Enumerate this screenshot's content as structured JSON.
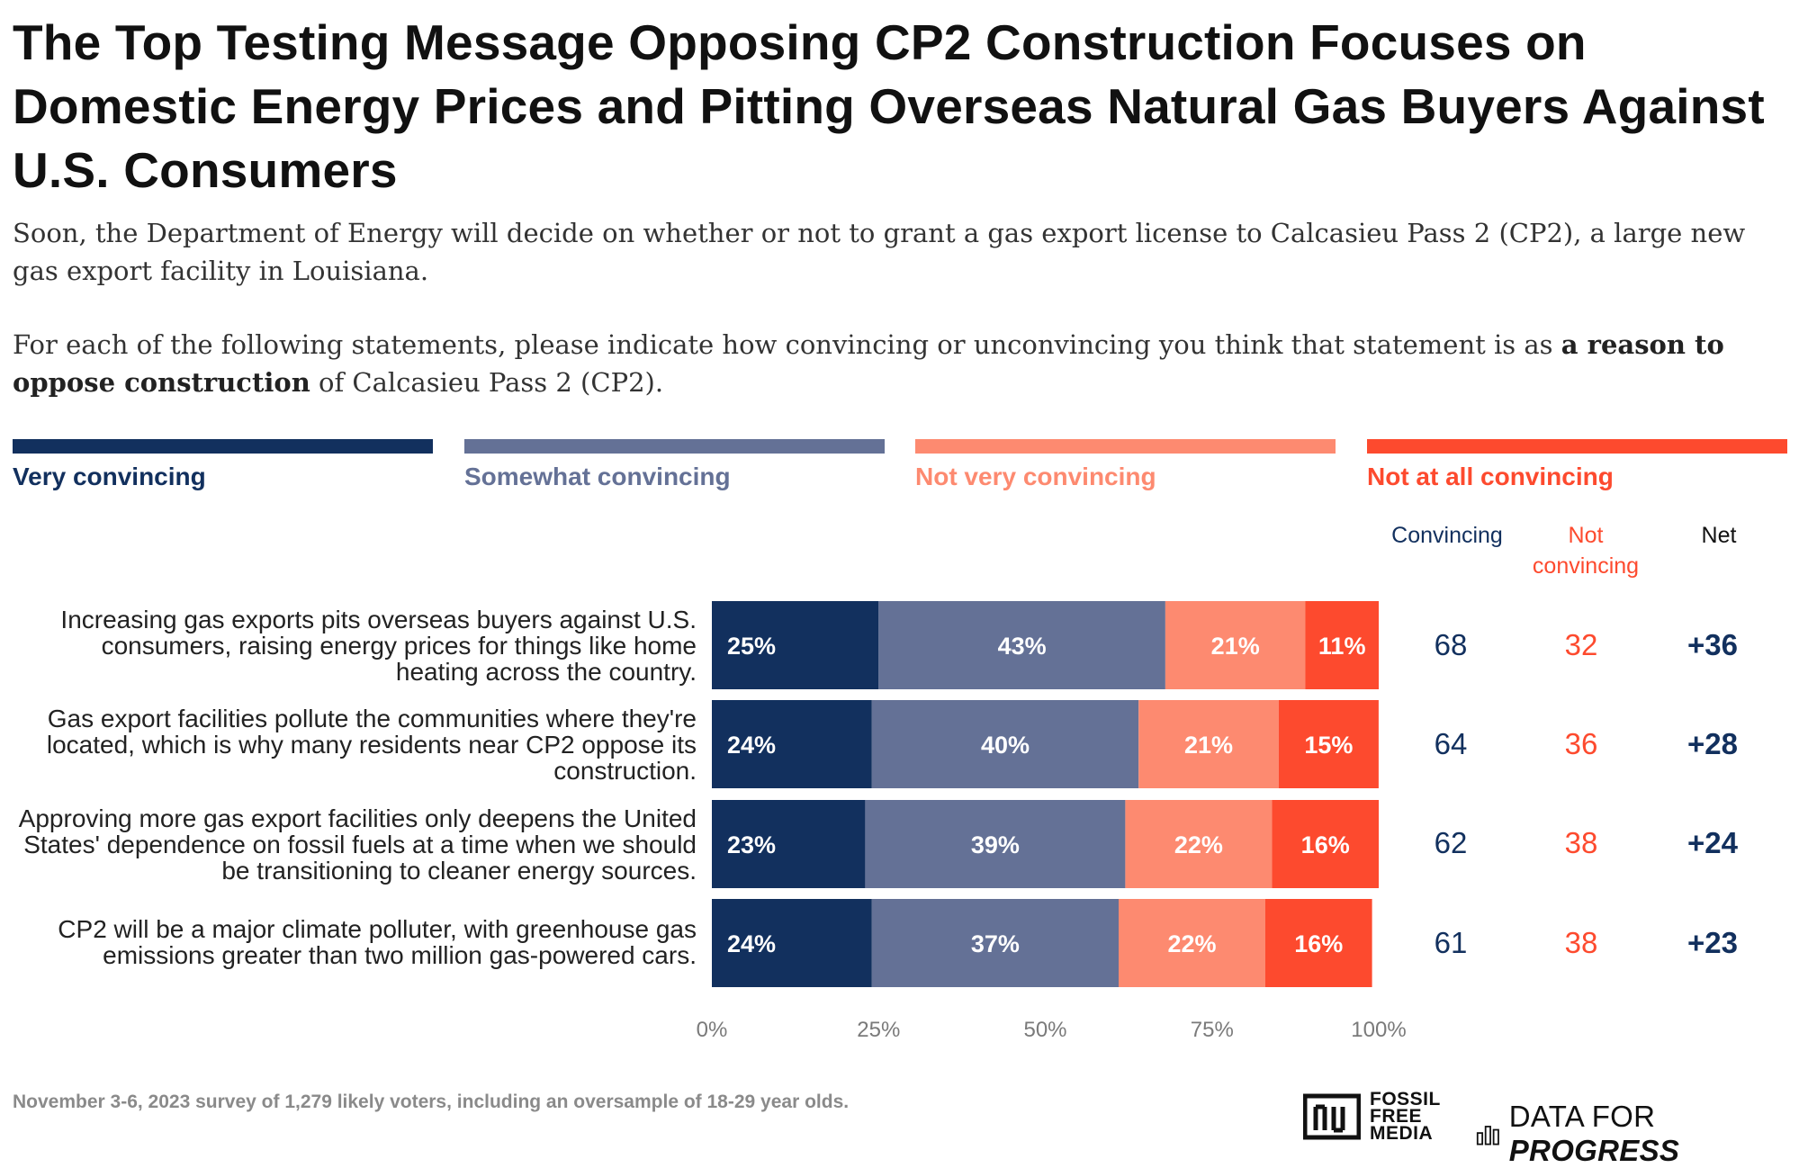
{
  "title": "The Top Testing Message Opposing CP2 Construction Focuses on Domestic Energy Prices and Pitting Overseas Natural Gas Buyers Against U.S. Consumers",
  "subtitle": "Soon, the Department of Energy will decide on whether or not to grant a gas export license to Calcasieu Pass 2 (CP2), a large new gas export facility in Louisiana.",
  "prompt": {
    "before": "For each of the following statements, please indicate how convincing or unconvincing you think that statement is as ",
    "bold": "a reason to oppose construction",
    "after": " of Calcasieu Pass 2 (CP2)."
  },
  "legend": [
    {
      "label": "Very convincing",
      "color": "#12305e"
    },
    {
      "label": "Somewhat convincing",
      "color": "#647196"
    },
    {
      "label": "Not very convincing",
      "color": "#fd8a70"
    },
    {
      "label": "Not at all convincing",
      "color": "#fd4a2e"
    }
  ],
  "columns": {
    "convincing": "Convincing",
    "not_convincing": "Not convincing",
    "net": "Net"
  },
  "chart_data": {
    "type": "bar",
    "orientation": "horizontal",
    "stacked": true,
    "categories": [
      "Increasing gas exports pits overseas buyers against U.S. consumers, raising energy prices for things like home heating across the country.",
      "Gas export facilities pollute the communities where they're located, which is why many residents near CP2 oppose its construction.",
      "Approving more gas export facilities only deepens the United States' dependence on fossil fuels at a time when we should be transitioning to cleaner energy sources.",
      "CP2 will be a major climate polluter, with greenhouse gas emissions greater than two million gas-powered cars."
    ],
    "series": [
      {
        "name": "Very convincing",
        "values": [
          25,
          24,
          23,
          24
        ]
      },
      {
        "name": "Somewhat convincing",
        "values": [
          43,
          40,
          39,
          37
        ]
      },
      {
        "name": "Not very convincing",
        "values": [
          21,
          21,
          22,
          22
        ]
      },
      {
        "name": "Not at all convincing",
        "values": [
          11,
          15,
          16,
          16
        ]
      }
    ],
    "convincing": [
      68,
      64,
      62,
      61
    ],
    "not_convincing": [
      32,
      36,
      38,
      38
    ],
    "net": [
      "+36",
      "+28",
      "+24",
      "+23"
    ],
    "x_ticks": [
      "0%",
      "25%",
      "50%",
      "75%",
      "100%"
    ],
    "xlim": [
      0,
      100
    ]
  },
  "footer": "November 3-6, 2023 survey of 1,279 likely voters, including an oversample of 18-29 year olds.",
  "logos": {
    "ffm": [
      "FOSSIL",
      "FREE",
      "MEDIA"
    ],
    "dfp_plain": "DATA FOR ",
    "dfp_italic": "PROGRESS"
  }
}
